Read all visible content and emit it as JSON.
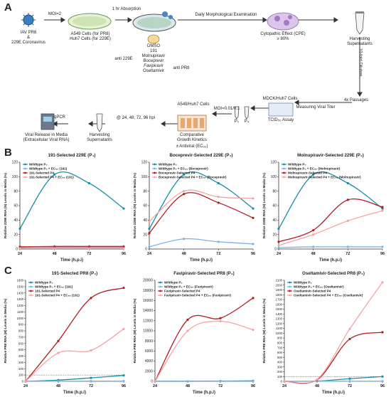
{
  "panel_letters": {
    "a": "A",
    "b": "B",
    "c": "C"
  },
  "workflow": {
    "virus_label_1": "IAV PR8",
    "virus_label_2": "&",
    "virus_label_3": "229E Coronavirus",
    "moi_label": "MOI=2",
    "cells_label_1": "A549 Cells (for PR8)",
    "cells_label_2": "Huh7 Cells (for 229E)",
    "absorption_label": "1 hr Absorption",
    "daily_exam_label": "Daily Morphological Examination",
    "cpe_label_1": "Cytopathic Effect (CPE)",
    "cpe_label_2": "≥ 80%",
    "harvest_top_1": "Harvesting",
    "harvest_top_2": "Supernatants",
    "dmso": "DMSO",
    "drug_191": "191",
    "drug_molnupiravir": "Molnupiravir",
    "drug_boceprevir": "Boceprevir",
    "drug_favipiravir": "Favipiravir",
    "drug_oseltamivir": "Oseltamivir",
    "anti_229e": "anti 229E",
    "anti_pr8": "anti PR8",
    "dilution_label": "10-fold Dilution",
    "passages_label": "4x Passages",
    "measuring_titer": "Measuring Viral Titer",
    "mdck_huh7": "MDCK/Huh7 Cells",
    "tcid_assay": "TCID₅₀ Assay",
    "p0": "P₀",
    "p4": "P₄",
    "moi_low": "MOI=0.01/0.1",
    "a549_huh7": "A549/Huh7 Cells",
    "comparative_1": "Comparative",
    "comparative_2": "Growth Kinetics",
    "antiviral": "± Antiviral (EC₉₀)",
    "timepoints": "@ 24, 48, 72, 96 hpi",
    "harvest_bottom_1": "Harvesting",
    "harvest_bottom_2": "Supernatants",
    "release_1": "Viral Release in Media",
    "release_2": "(Extracellular Viral RNA)",
    "qpcr": "qPCR"
  },
  "chart_data": [
    {
      "type": "line",
      "title": "191-Selected 229E (P₄)",
      "ylabel": "Relative 229E RNA (N) Levels in Media (%)",
      "xlabel": "Time (h.p.i)",
      "x": [
        24,
        48,
        72,
        96
      ],
      "xlim": [
        24,
        96
      ],
      "ylim": [
        0,
        120
      ],
      "yticks": [
        0,
        20,
        40,
        60,
        80,
        100,
        120
      ],
      "legend": "top-left",
      "series": [
        {
          "name": "Wildtype P₀",
          "values": [
            28,
            103,
            91,
            56
          ],
          "color": "#1a8fa0"
        },
        {
          "name": "Wildtype P₀ + EC₉₀ (191)",
          "values": [
            2,
            4,
            4,
            4
          ],
          "color": "#7fb2e6"
        },
        {
          "name": "191-Selected P4",
          "values": [
            3,
            3,
            3,
            3
          ],
          "color": "#b01c24"
        },
        {
          "name": "191-Selected P4 + EC₉₀ (191)",
          "values": [
            1,
            1,
            1,
            1
          ],
          "color": "#f4a5a5"
        }
      ]
    },
    {
      "type": "line",
      "title": "Boceprevir-Selected 229E (P₄)",
      "ylabel": "Relative 229E RNA (N) Levels in Media (%)",
      "xlabel": "Time (h.p.i)",
      "x": [
        24,
        48,
        72,
        96
      ],
      "xlim": [
        24,
        96
      ],
      "ylim": [
        0,
        120
      ],
      "yticks": [
        0,
        20,
        40,
        60,
        80,
        100,
        120
      ],
      "legend": "top-left",
      "series": [
        {
          "name": "Wildtype P₀",
          "values": [
            28,
            103,
            91,
            56
          ],
          "color": "#1a8fa0"
        },
        {
          "name": "Wildtype P₀ + EC₉₀ (Boceprevir)",
          "values": [
            3,
            14,
            10,
            7
          ],
          "color": "#7fb2e6"
        },
        {
          "name": "Boceprevir-Selected P4",
          "values": [
            22,
            76,
            64,
            43
          ],
          "color": "#b01c24"
        },
        {
          "name": "Boceprevir-Selected P4 + EC₉₀ (Boceprevir)",
          "values": [
            38,
            80,
            72,
            70
          ],
          "color": "#f4a5a5"
        }
      ]
    },
    {
      "type": "line",
      "title": "Molnupiravir-Selected 229E (P₄)",
      "ylabel": "Relative 229E RNA (N) Levels in Media (%)",
      "xlabel": "Time (h.p.i)",
      "x": [
        24,
        48,
        72,
        96
      ],
      "xlim": [
        24,
        96
      ],
      "ylim": [
        0,
        120
      ],
      "yticks": [
        0,
        20,
        40,
        60,
        80,
        100,
        120
      ],
      "legend": "top-left",
      "series": [
        {
          "name": "Wildtype P₀",
          "values": [
            28,
            103,
            91,
            56
          ],
          "color": "#1a8fa0"
        },
        {
          "name": "Wildtype P₀ + EC₉₀ (Molnupiravir)",
          "values": [
            2,
            3,
            3,
            3
          ],
          "color": "#7fb2e6"
        },
        {
          "name": "Molnupiravir-Selected P4",
          "values": [
            10,
            26,
            68,
            58
          ],
          "color": "#b01c24"
        },
        {
          "name": "Molnupiravir-Selected P4 + EC₉₀ (Molnupiravir)",
          "values": [
            5,
            20,
            39,
            53
          ],
          "color": "#f4a5a5"
        }
      ]
    },
    {
      "type": "line",
      "title": "191-Selected PR8 (P₄)",
      "ylabel": "Relative PR8 RNA (M) Levels in Media (%)",
      "xlabel": "Time (h.p.i)",
      "x": [
        24,
        48,
        72,
        96
      ],
      "xlim": [
        24,
        96
      ],
      "ylim": [
        0,
        1600
      ],
      "yticks": [
        0,
        100,
        200,
        300,
        400,
        500,
        600,
        700,
        800,
        900,
        1000,
        1100,
        1200,
        1300,
        1400,
        1500,
        1600
      ],
      "reference_line": 100,
      "legend": "top-left",
      "series": [
        {
          "name": "Wildtype P₀",
          "values": [
            0,
            20,
            55,
            95
          ],
          "color": "#1a8fa0"
        },
        {
          "name": "Wildtype P₀ + EC₉₀ (191)",
          "values": [
            0,
            2,
            4,
            5
          ],
          "color": "#7fb2e6"
        },
        {
          "name": "191-Selected P4",
          "values": [
            0,
            640,
            1320,
            1480
          ],
          "color": "#b01c24"
        },
        {
          "name": "191-Selected P4 + EC₉₀ (191)",
          "values": [
            0,
            450,
            490,
            830
          ],
          "color": "#f4a5a5"
        }
      ]
    },
    {
      "type": "line",
      "title": "Favipiravir-Selected PR8 (P₄)",
      "ylabel": "Relative PR8 RNA (M) Levels in Media (%)",
      "xlabel": "Time (h.p.i)",
      "x": [
        24,
        48,
        72,
        96
      ],
      "xlim": [
        24,
        96
      ],
      "ylim": [
        0,
        20000
      ],
      "yticks": [
        0,
        2000,
        4000,
        6000,
        8000,
        10000,
        12000,
        14000,
        16000,
        18000,
        20000
      ],
      "reference_line": 100,
      "legend": "top-left",
      "series": [
        {
          "name": "Wildtype P₀",
          "values": [
            0,
            0,
            50,
            100
          ],
          "color": "#1a8fa0"
        },
        {
          "name": "Wildtype P₀ + EC₉₀ (Favipiravir)",
          "values": [
            0,
            0,
            0,
            0
          ],
          "color": "#7fb2e6"
        },
        {
          "name": "Favipiravir-Selected P4",
          "values": [
            0,
            12200,
            12500,
            16500
          ],
          "color": "#b01c24"
        },
        {
          "name": "Favipiravir-Selected P4 + EC₉₀ (Favipiravir)",
          "values": [
            0,
            10000,
            11900,
            10200
          ],
          "color": "#f4a5a5"
        }
      ]
    },
    {
      "type": "line",
      "title": "Oseltamivir-Selected PR8 (P₄)",
      "ylabel": "Relative PR8 RNA (M) Levels in Media (%)",
      "xlabel": "Time (h.p.i)",
      "x": [
        24,
        48,
        72,
        96
      ],
      "xlim": [
        24,
        96
      ],
      "ylim": [
        0,
        2100
      ],
      "yticks": [
        0,
        100,
        200,
        300,
        400,
        500,
        600,
        700,
        800,
        900,
        1000,
        1100,
        1200,
        1300,
        1400,
        1500,
        1600,
        1700,
        1800,
        1900,
        2000,
        2100
      ],
      "reference_line": 100,
      "legend": "top-left",
      "series": [
        {
          "name": "Wildtype P₀",
          "values": [
            0,
            5,
            55,
            100
          ],
          "color": "#1a8fa0"
        },
        {
          "name": "Wildtype P₀ + EC₉₀ (Oseltamivir)",
          "values": [
            0,
            2,
            3,
            4
          ],
          "color": "#7fb2e6"
        },
        {
          "name": "Oseltamivir-Selected P4",
          "values": [
            0,
            30,
            880,
            1020
          ],
          "color": "#b01c24"
        },
        {
          "name": "Oseltamivir-Selected P4 + EC₉₀ (Oseltamivir)",
          "values": [
            0,
            40,
            1090,
            2060
          ],
          "color": "#f4a5a5"
        }
      ]
    }
  ]
}
